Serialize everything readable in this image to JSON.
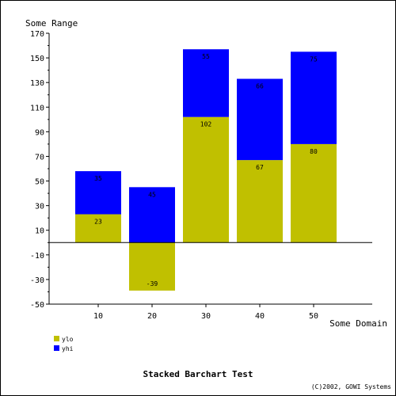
{
  "chart_data": {
    "type": "bar",
    "stacked": true,
    "title": "Stacked Barchart Test",
    "credit": "(C)2002, GOWI Systems",
    "xlabel": "Some Domain",
    "ylabel": "Some Range",
    "categories": [
      "10",
      "20",
      "30",
      "40",
      "50"
    ],
    "series": [
      {
        "name": "ylo",
        "color": "#c0c000",
        "values": [
          23,
          -39,
          102,
          67,
          80
        ]
      },
      {
        "name": "yhi",
        "color": "#0000ff",
        "values": [
          35,
          45,
          55,
          66,
          75
        ]
      }
    ],
    "ylim": [
      -50,
      170
    ],
    "yticks": [
      -50,
      -30,
      -10,
      10,
      30,
      50,
      70,
      90,
      110,
      130,
      150,
      170
    ],
    "legend_position": "bottom-left"
  }
}
